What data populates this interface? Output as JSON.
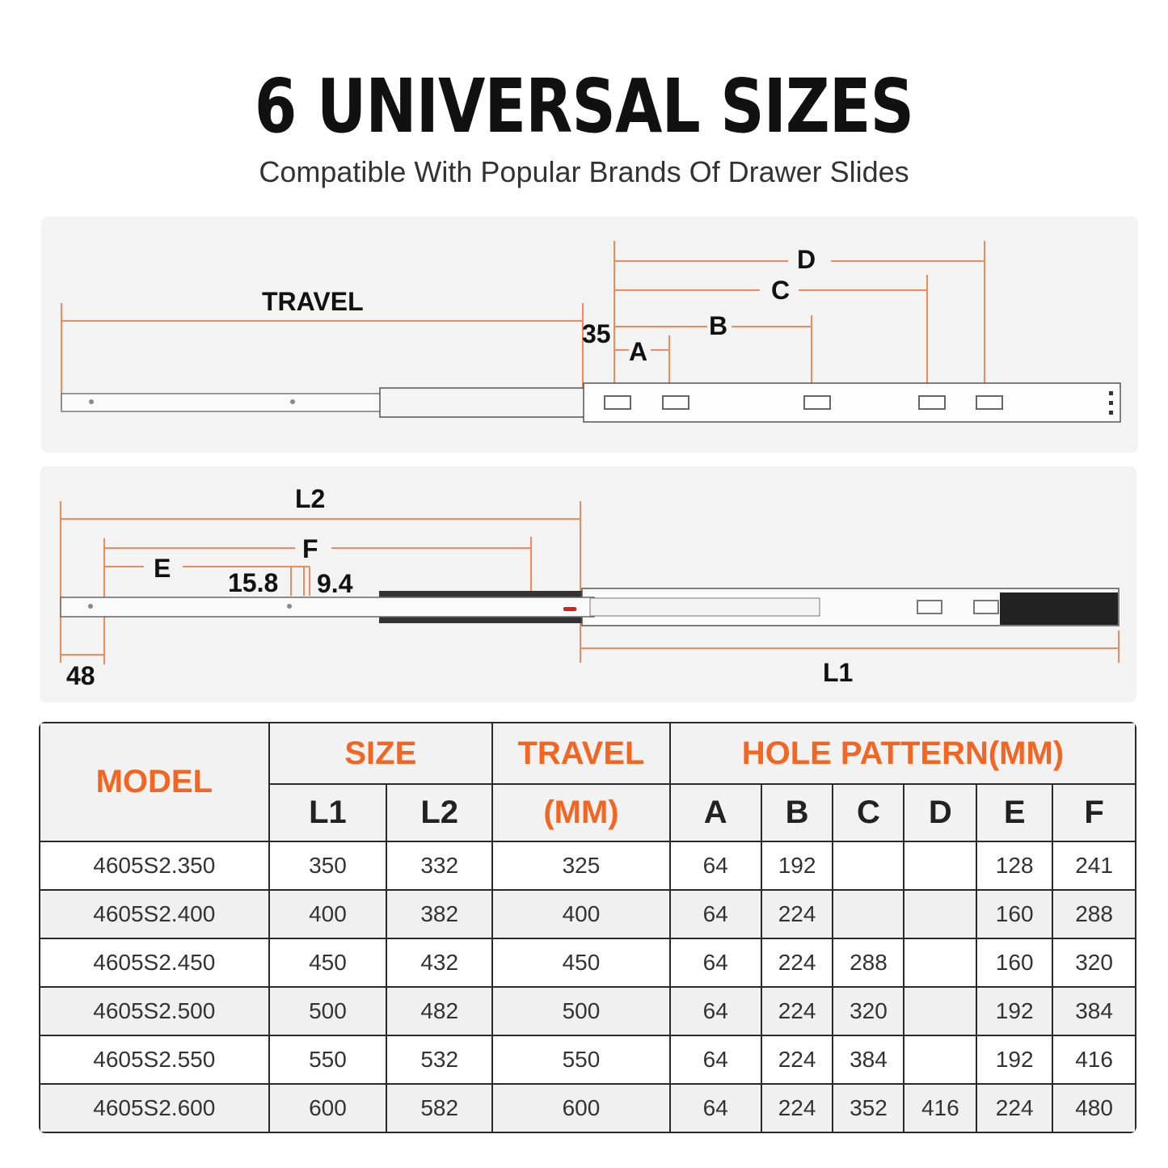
{
  "header": {
    "title": "6 UNIVERSAL SIZES",
    "subtitle": "Compatible With Popular Brands Of Drawer Slides"
  },
  "diagram_top": {
    "labels": {
      "travel": "TRAVEL",
      "d": "D",
      "c": "C",
      "b": "B",
      "a": "A",
      "offset": "35"
    }
  },
  "diagram_bottom": {
    "labels": {
      "l2": "L2",
      "f": "F",
      "e": "E",
      "dim1": "15.8",
      "dim2": "9.4",
      "offset": "48",
      "l1": "L1"
    }
  },
  "colors": {
    "accent": "#f26522",
    "dimension_line": "#f08a5d",
    "panel": "#f3f3f3"
  },
  "table": {
    "headers": {
      "model": "MODEL",
      "size": "SIZE",
      "travel": "TRAVEL",
      "travel_unit": "(MM)",
      "hole_pattern": "HOLE PATTERN(MM)",
      "l1": "L1",
      "l2": "L2",
      "a": "A",
      "b": "B",
      "c": "C",
      "d": "D",
      "e": "E",
      "f": "F"
    },
    "rows": [
      [
        "4605S2.350",
        "350",
        "332",
        "325",
        "64",
        "192",
        "",
        "",
        "128",
        "241"
      ],
      [
        "4605S2.400",
        "400",
        "382",
        "400",
        "64",
        "224",
        "",
        "",
        "160",
        "288"
      ],
      [
        "4605S2.450",
        "450",
        "432",
        "450",
        "64",
        "224",
        "288",
        "",
        "160",
        "320"
      ],
      [
        "4605S2.500",
        "500",
        "482",
        "500",
        "64",
        "224",
        "320",
        "",
        "192",
        "384"
      ],
      [
        "4605S2.550",
        "550",
        "532",
        "550",
        "64",
        "224",
        "384",
        "",
        "192",
        "416"
      ],
      [
        "4605S2.600",
        "600",
        "582",
        "600",
        "64",
        "224",
        "352",
        "416",
        "224",
        "480"
      ]
    ]
  }
}
